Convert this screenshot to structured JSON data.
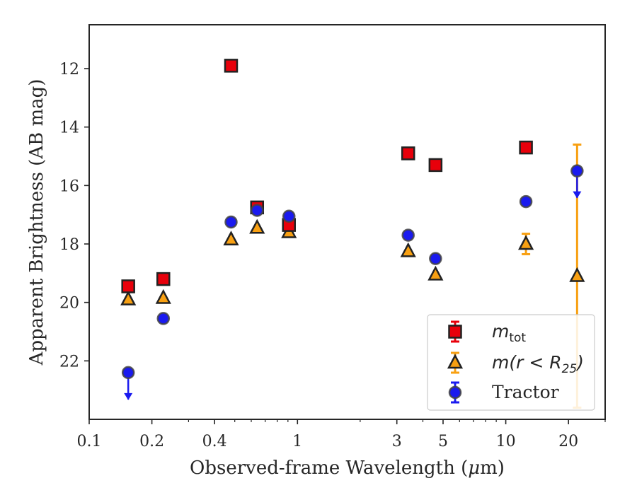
{
  "chart_data": {
    "type": "scatter",
    "title": "",
    "xlabel_parts": [
      "Observed-frame Wavelength (",
      "μ",
      "m)"
    ],
    "ylabel": "Apparent Brightness (AB mag)",
    "x_scale": "log",
    "xlim": [
      0.1,
      30
    ],
    "ylim": [
      24,
      10.5
    ],
    "y_inverted": true,
    "x_tick_values": [
      0.1,
      0.2,
      0.4,
      1,
      3,
      5,
      10,
      20
    ],
    "x_tick_labels": [
      "0.1",
      "0.2",
      "0.4",
      "1",
      "3",
      "5",
      "10",
      "20"
    ],
    "y_tick_values": [
      12,
      14,
      16,
      18,
      20,
      22
    ],
    "y_tick_labels": [
      "12",
      "14",
      "16",
      "18",
      "20",
      "22"
    ],
    "grid": false,
    "legend_position": "lower-right",
    "series": [
      {
        "id": "mtot",
        "name_main": "m",
        "name_sub": "tot",
        "marker": "square",
        "color": "#e8000b",
        "errorbar_color": "#e8000b",
        "x": [
          0.154,
          0.227,
          0.48,
          0.64,
          0.91,
          3.4,
          4.6,
          12.5
        ],
        "y": [
          19.45,
          19.2,
          11.9,
          16.75,
          17.35,
          14.9,
          15.3,
          14.7
        ]
      },
      {
        "id": "m_r25",
        "name_main": "m(r < R",
        "name_sub": "25",
        "name_tail": ")",
        "marker": "triangle",
        "color": "#f8a012",
        "errorbar_color": "#f8a012",
        "x": [
          0.154,
          0.227,
          0.48,
          0.64,
          0.91,
          3.4,
          4.6,
          12.5,
          22
        ],
        "y": [
          19.9,
          19.85,
          17.85,
          17.45,
          17.6,
          18.25,
          19.05,
          18.0,
          19.1
        ],
        "yerr": [
          0,
          0,
          0,
          0,
          0,
          0,
          0,
          0.35,
          4.5
        ]
      },
      {
        "id": "tractor",
        "name": "Tractor",
        "marker": "circle",
        "color": "#1a1aef",
        "errorbar_color": "#1a1aef",
        "x": [
          0.154,
          0.227,
          0.48,
          0.64,
          0.91,
          3.4,
          4.6,
          12.5,
          22
        ],
        "y": [
          22.4,
          20.55,
          17.25,
          16.85,
          17.05,
          17.7,
          18.5,
          16.55,
          15.5
        ],
        "upper_limit": [
          true,
          false,
          false,
          false,
          false,
          false,
          false,
          false,
          true
        ]
      }
    ]
  }
}
